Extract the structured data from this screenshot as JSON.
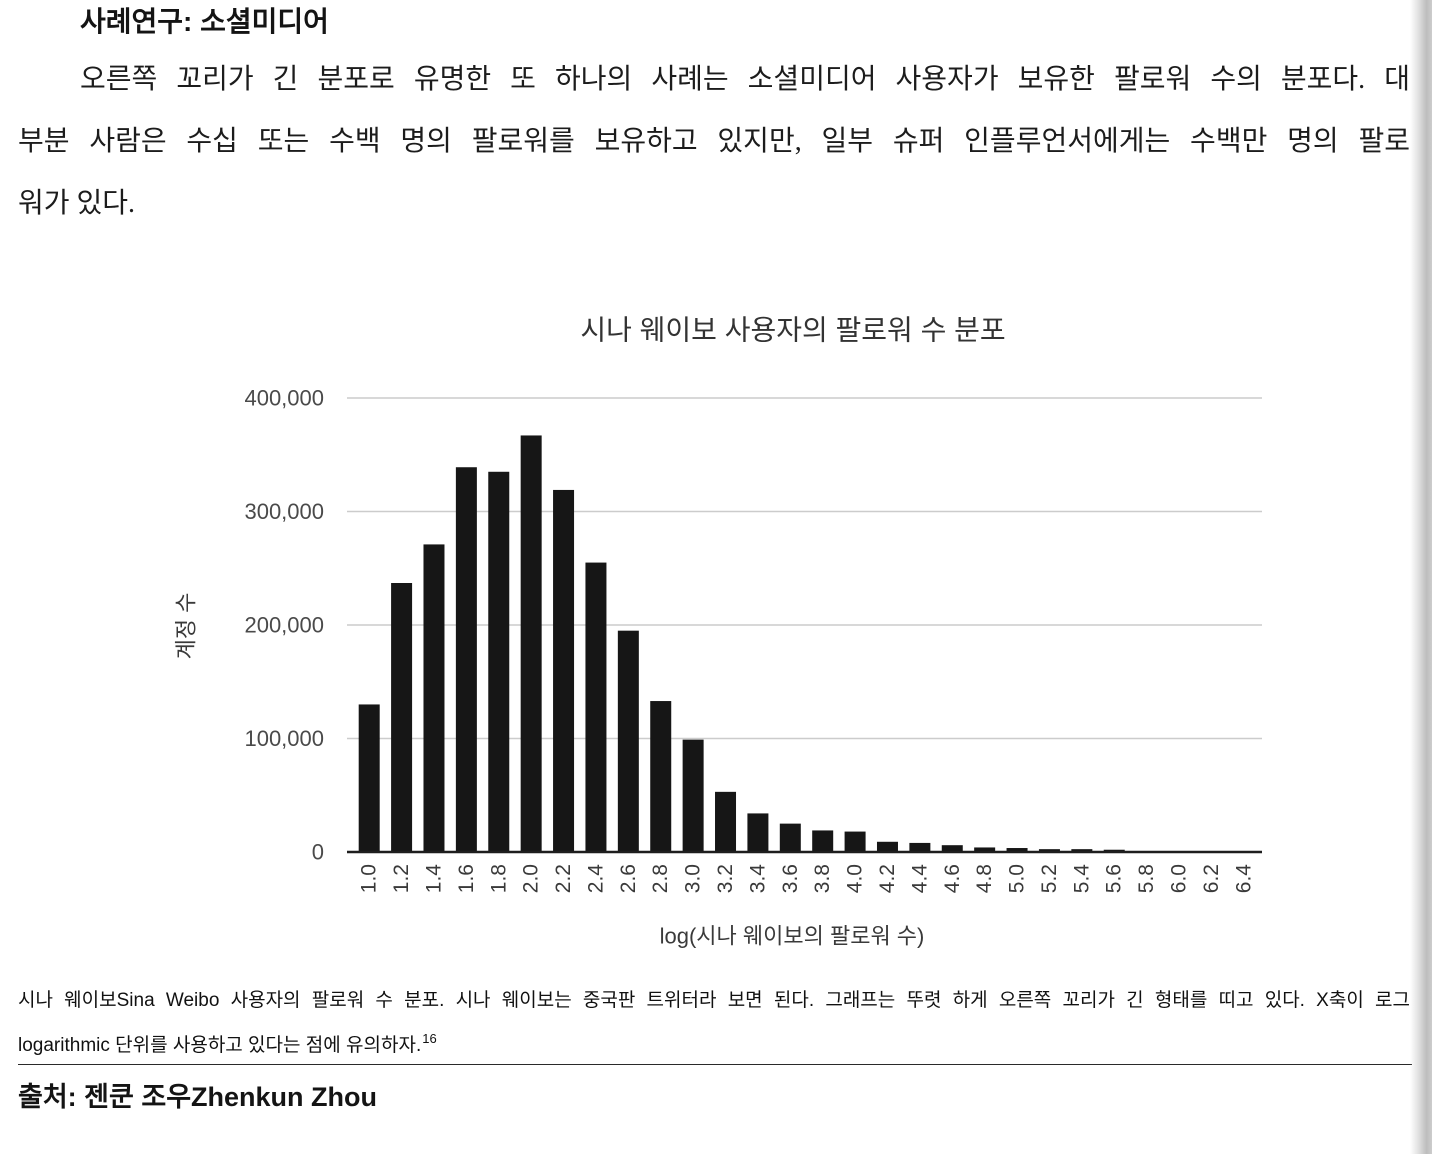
{
  "section": {
    "heading": "사례연구: 소셜미디어",
    "paragraph_lines": [
      "오른쪽 꼬리가 긴 분포로 유명한 또 하나의 사례는 소셜미디어 사용자가 보유한 팔로워 수의 분포다. 대",
      "부분 사람은 수십 또는 수백 명의 팔로워를 보유하고 있지만, 일부 슈퍼 인플루언서에게는 수백만 명의 팔로",
      "워가 있다."
    ]
  },
  "chart_data": {
    "type": "bar",
    "title": "시나 웨이보 사용자의 팔로워 수 분포",
    "xlabel": "log(시나 웨이보의 팔로워 수)",
    "ylabel": "계정 수",
    "categories": [
      "1.0",
      "1.2",
      "1.4",
      "1.6",
      "1.8",
      "2.0",
      "2.2",
      "2.4",
      "2.6",
      "2.8",
      "3.0",
      "3.2",
      "3.4",
      "3.6",
      "3.8",
      "4.0",
      "4.2",
      "4.4",
      "4.6",
      "4.8",
      "5.0",
      "5.2",
      "5.4",
      "5.6",
      "5.8",
      "6.0",
      "6.2",
      "6.4"
    ],
    "values": [
      130000,
      237000,
      271000,
      339000,
      335000,
      367000,
      319000,
      255000,
      195000,
      133000,
      99000,
      53000,
      34000,
      25000,
      19000,
      18000,
      9000,
      8000,
      6000,
      4000,
      3500,
      2500,
      2500,
      2000,
      800,
      500,
      300,
      200
    ],
    "ylim": [
      0,
      400000
    ],
    "yticks": [
      0,
      100000,
      200000,
      300000,
      400000
    ],
    "ytick_labels": [
      "0",
      "100,000",
      "200,000",
      "300,000",
      "400,000"
    ],
    "grid": true,
    "legend": false,
    "bar_color": "#161616",
    "grid_color": "#cccccc",
    "axis_color": "#1e1e1e"
  },
  "figure": {
    "caption_lines": [
      "시나 웨이보Sina Weibo 사용자의 팔로워 수 분포. 시나 웨이보는 중국판 트위터라 보면 된다. 그래프는 뚜렷 하게 오른쪽 꼬리가 긴 형태를 띠고 있다. X축이 로그",
      "logarithmic 단위를 사용하고 있다는 점에 유의하자."
    ],
    "footnote_ref": "16",
    "source": "출처: 젠쿤 조우Zhenkun Zhou"
  }
}
